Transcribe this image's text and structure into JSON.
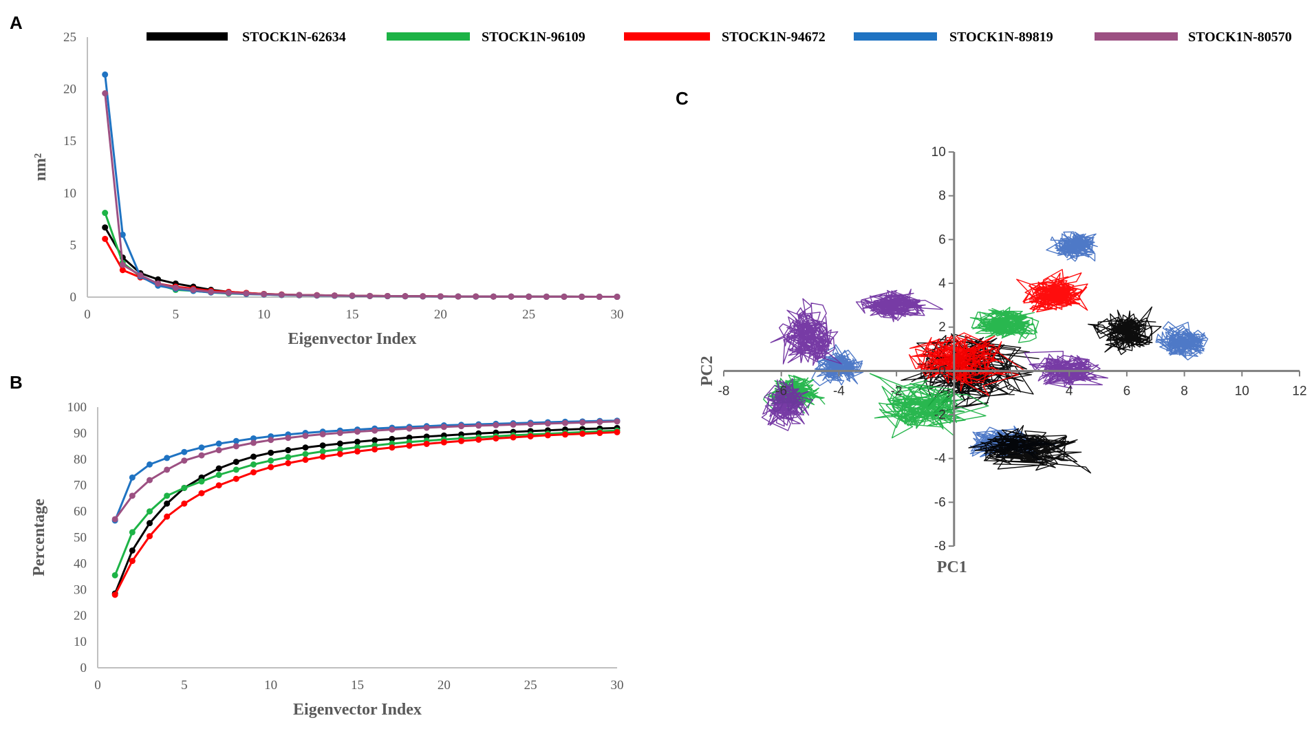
{
  "series_names": [
    "STOCK1N-62634",
    "STOCK1N-96109",
    "STOCK1N-94672",
    "STOCK1N-89819",
    "STOCK1N-80570"
  ],
  "series_colors": [
    "#000000",
    "#1db346",
    "#ff0000",
    "#1f73c2",
    "#9c5082"
  ],
  "chart_data": [
    {
      "panel": "A",
      "type": "line",
      "title": "",
      "xlabel": "Eigenvector Index",
      "ylabel": "nm²",
      "xlim": [
        0,
        30
      ],
      "ylim": [
        0,
        25
      ],
      "xticks": [
        0,
        5,
        10,
        15,
        20,
        25,
        30
      ],
      "yticks": [
        0,
        5,
        10,
        15,
        20,
        25
      ],
      "x": [
        1,
        2,
        3,
        4,
        5,
        6,
        7,
        8,
        9,
        10,
        11,
        12,
        13,
        14,
        15,
        16,
        17,
        18,
        19,
        20,
        21,
        22,
        23,
        24,
        25,
        26,
        27,
        28,
        29,
        30
      ],
      "series": [
        {
          "name": "STOCK1N-62634",
          "values": [
            6.7,
            3.8,
            2.3,
            1.7,
            1.3,
            1.0,
            0.7,
            0.5,
            0.4,
            0.3,
            0.25,
            0.2,
            0.18,
            0.15,
            0.13,
            0.11,
            0.1,
            0.09,
            0.08,
            0.07,
            0.06,
            0.06,
            0.05,
            0.05,
            0.05,
            0.04,
            0.04,
            0.04,
            0.03,
            0.03
          ]
        },
        {
          "name": "STOCK1N-96109",
          "values": [
            8.1,
            3.3,
            2.0,
            1.2,
            0.7,
            0.6,
            0.45,
            0.35,
            0.3,
            0.25,
            0.2,
            0.18,
            0.15,
            0.13,
            0.11,
            0.1,
            0.09,
            0.08,
            0.07,
            0.06,
            0.06,
            0.05,
            0.05,
            0.05,
            0.04,
            0.04,
            0.04,
            0.03,
            0.03,
            0.03
          ]
        },
        {
          "name": "STOCK1N-94672",
          "values": [
            5.6,
            2.6,
            1.9,
            1.3,
            1.0,
            0.8,
            0.6,
            0.5,
            0.4,
            0.3,
            0.25,
            0.2,
            0.18,
            0.15,
            0.13,
            0.11,
            0.1,
            0.09,
            0.08,
            0.07,
            0.06,
            0.06,
            0.05,
            0.05,
            0.04,
            0.04,
            0.04,
            0.03,
            0.03,
            0.03
          ]
        },
        {
          "name": "STOCK1N-89819",
          "values": [
            21.4,
            6.0,
            2.0,
            1.1,
            0.8,
            0.6,
            0.45,
            0.38,
            0.3,
            0.25,
            0.2,
            0.18,
            0.15,
            0.13,
            0.11,
            0.1,
            0.09,
            0.08,
            0.07,
            0.06,
            0.06,
            0.05,
            0.05,
            0.05,
            0.04,
            0.04,
            0.04,
            0.03,
            0.03,
            0.03
          ]
        },
        {
          "name": "STOCK1N-80570",
          "values": [
            19.6,
            3.1,
            2.1,
            1.3,
            0.9,
            0.7,
            0.5,
            0.42,
            0.35,
            0.28,
            0.23,
            0.2,
            0.17,
            0.15,
            0.13,
            0.11,
            0.1,
            0.09,
            0.08,
            0.07,
            0.06,
            0.06,
            0.05,
            0.05,
            0.04,
            0.04,
            0.04,
            0.03,
            0.03,
            0.03
          ]
        }
      ]
    },
    {
      "panel": "B",
      "type": "line",
      "title": "",
      "xlabel": "Eigenvector Index",
      "ylabel": "Percentage",
      "xlim": [
        0,
        30
      ],
      "ylim": [
        0,
        100
      ],
      "xticks": [
        0,
        5,
        10,
        15,
        20,
        25,
        30
      ],
      "yticks": [
        0,
        10,
        20,
        30,
        40,
        50,
        60,
        70,
        80,
        90,
        100
      ],
      "x": [
        1,
        2,
        3,
        4,
        5,
        6,
        7,
        8,
        9,
        10,
        11,
        12,
        13,
        14,
        15,
        16,
        17,
        18,
        19,
        20,
        21,
        22,
        23,
        24,
        25,
        26,
        27,
        28,
        29,
        30
      ],
      "series": [
        {
          "name": "STOCK1N-62634",
          "values": [
            28.5,
            45,
            55.5,
            63,
            69,
            73,
            76.5,
            79,
            81,
            82.5,
            83.5,
            84.5,
            85.3,
            86,
            86.7,
            87.3,
            87.8,
            88.3,
            88.7,
            89.1,
            89.5,
            89.9,
            90.2,
            90.5,
            90.8,
            91.1,
            91.4,
            91.6,
            91.8,
            92
          ]
        },
        {
          "name": "STOCK1N-96109",
          "values": [
            35.5,
            52,
            60,
            66,
            69,
            71.5,
            74,
            76,
            78,
            79.5,
            80.8,
            82,
            83,
            83.8,
            84.6,
            85.3,
            86,
            86.6,
            87.1,
            87.6,
            88,
            88.4,
            88.8,
            89.2,
            89.5,
            89.8,
            90.1,
            90.4,
            90.7,
            91
          ]
        },
        {
          "name": "STOCK1N-94672",
          "values": [
            28,
            41,
            50.5,
            58,
            63,
            67,
            70,
            72.5,
            75,
            77,
            78.5,
            79.8,
            81,
            82,
            83,
            83.8,
            84.5,
            85.2,
            85.9,
            86.5,
            87,
            87.5,
            88,
            88.4,
            88.8,
            89.2,
            89.5,
            89.8,
            90.1,
            90.4
          ]
        },
        {
          "name": "STOCK1N-89819",
          "values": [
            56.5,
            73,
            78,
            80.5,
            82.8,
            84.5,
            86,
            87,
            88,
            88.8,
            89.5,
            90.1,
            90.6,
            91,
            91.4,
            91.8,
            92.1,
            92.4,
            92.7,
            93,
            93.2,
            93.4,
            93.6,
            93.8,
            94,
            94.2,
            94.4,
            94.5,
            94.7,
            94.8
          ]
        },
        {
          "name": "STOCK1N-80570",
          "values": [
            57,
            66,
            72,
            76,
            79.5,
            81.5,
            83.5,
            85,
            86.3,
            87.4,
            88.2,
            89,
            89.6,
            90.1,
            90.6,
            91,
            91.4,
            91.8,
            92.1,
            92.4,
            92.7,
            92.9,
            93.1,
            93.3,
            93.5,
            93.7,
            93.9,
            94.1,
            94.3,
            94.5
          ]
        }
      ]
    },
    {
      "panel": "C",
      "type": "line",
      "title": "",
      "xlabel": "PC1",
      "ylabel": "PC2",
      "xlim": [
        -8,
        12
      ],
      "ylim": [
        -8,
        10
      ],
      "xticks": [
        -8,
        -6,
        -4,
        -2,
        0,
        2,
        4,
        6,
        8,
        10,
        12
      ],
      "yticks": [
        -8,
        -6,
        -4,
        -2,
        0,
        2,
        4,
        6,
        8,
        10
      ],
      "series": [
        {
          "name": "STOCK1N-89819",
          "color": "#4472c4",
          "clusters": [
            [
              8,
              1.3,
              1.1,
              0.9
            ],
            [
              4.2,
              5.7,
              1.0,
              0.9
            ],
            [
              1.8,
              -3.3,
              1.8,
              0.9
            ],
            [
              -4,
              0.2,
              1.0,
              1.0
            ]
          ]
        },
        {
          "name": "STOCK1N-62634",
          "color": "#000000",
          "clusters": [
            [
              0.5,
              0.2,
              3.0,
              2.4
            ],
            [
              2.5,
              -3.5,
              2.5,
              1.2
            ],
            [
              6,
              1.8,
              1.2,
              1.2
            ]
          ]
        },
        {
          "name": "STOCK1N-96109",
          "color": "#1db346",
          "clusters": [
            [
              -1,
              -1.6,
              2.2,
              1.6
            ],
            [
              -5.5,
              -1,
              1.2,
              1.0
            ],
            [
              1.8,
              2.2,
              1.6,
              0.9
            ]
          ]
        },
        {
          "name": "STOCK1N-94672",
          "color": "#ff0000",
          "clusters": [
            [
              0.2,
              0.5,
              2.2,
              1.6
            ],
            [
              3.5,
              3.5,
              1.5,
              1.1
            ]
          ]
        },
        {
          "name": "STOCK1N-80570",
          "color": "#7030a0",
          "clusters": [
            [
              -5,
              1.6,
              1.3,
              1.9
            ],
            [
              -5.8,
              -1.5,
              1.0,
              1.3
            ],
            [
              -2,
              3,
              1.6,
              0.9
            ],
            [
              4,
              0,
              1.6,
              1.0
            ]
          ]
        }
      ]
    }
  ],
  "panel_letters": {
    "a": "A",
    "b": "B",
    "c": "C"
  }
}
